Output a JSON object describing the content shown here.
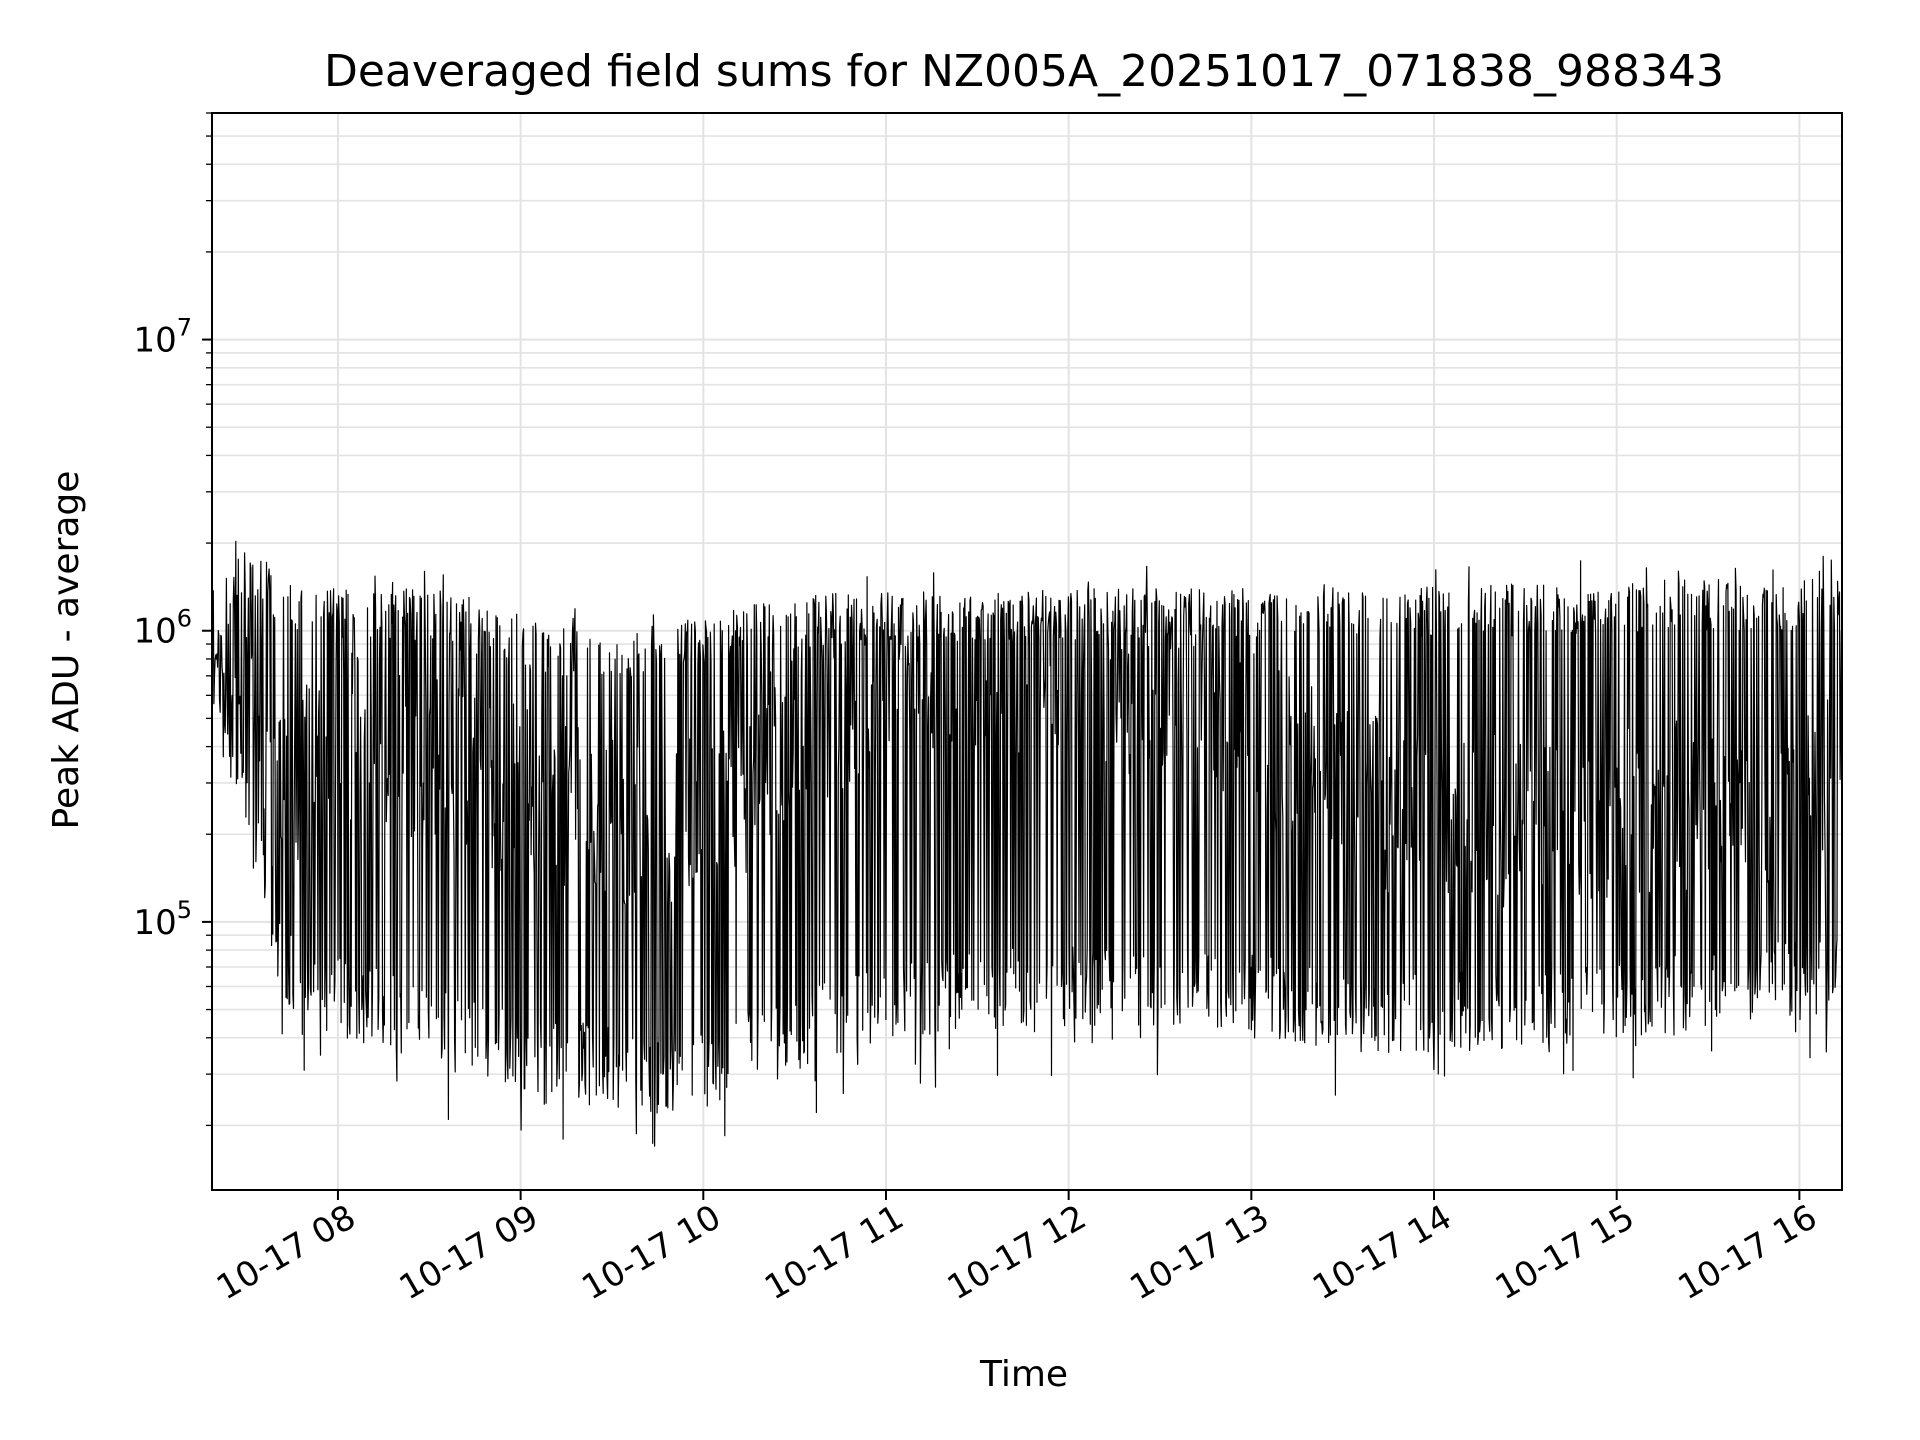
{
  "chart_data": {
    "type": "line",
    "title": "Deaveraged field sums for NZ005A_20251017_071838_988343",
    "xlabel": "Time",
    "ylabel": "Peak ADU - average",
    "yscale": "log",
    "xlim": [
      "2025-10-17T07:18:38",
      "2025-10-17T16:14:00"
    ],
    "ylim": [
      12000,
      60000000
    ],
    "grid": true,
    "line_color": "#000000",
    "x_ticks": [
      {
        "value": "2025-10-17T08:00:00",
        "label": "10-17 08"
      },
      {
        "value": "2025-10-17T09:00:00",
        "label": "10-17 09"
      },
      {
        "value": "2025-10-17T10:00:00",
        "label": "10-17 10"
      },
      {
        "value": "2025-10-17T11:00:00",
        "label": "10-17 11"
      },
      {
        "value": "2025-10-17T12:00:00",
        "label": "10-17 12"
      },
      {
        "value": "2025-10-17T13:00:00",
        "label": "10-17 13"
      },
      {
        "value": "2025-10-17T14:00:00",
        "label": "10-17 14"
      },
      {
        "value": "2025-10-17T15:00:00",
        "label": "10-17 15"
      },
      {
        "value": "2025-10-17T16:00:00",
        "label": "10-17 16"
      }
    ],
    "y_ticks": [
      {
        "value": 100000,
        "base": "10",
        "exp": "5"
      },
      {
        "value": 1000000,
        "base": "10",
        "exp": "6"
      },
      {
        "value": 10000000,
        "base": "10",
        "exp": "7"
      }
    ],
    "series": [
      {
        "x": [
          "2025-10-17T07:18:38",
          "2025-10-17T07:22:00",
          "2025-10-17T07:26:00",
          "2025-10-17T07:30:00",
          "2025-10-17T07:35:00",
          "2025-10-17T07:40:00",
          "2025-10-17T07:45:00",
          "2025-10-17T07:50:00",
          "2025-10-17T07:55:00",
          "2025-10-17T08:00:00",
          "2025-10-17T08:10:00",
          "2025-10-17T08:20:00",
          "2025-10-17T08:30:00",
          "2025-10-17T08:40:00",
          "2025-10-17T08:50:00",
          "2025-10-17T09:00:00",
          "2025-10-17T09:15:00",
          "2025-10-17T09:30:00",
          "2025-10-17T09:45:00",
          "2025-10-17T10:00:00",
          "2025-10-17T10:15:00",
          "2025-10-17T10:30:00",
          "2025-10-17T10:45:00",
          "2025-10-17T11:00:00",
          "2025-10-17T11:15:00",
          "2025-10-17T11:30:00",
          "2025-10-17T11:45:00",
          "2025-10-17T12:00:00",
          "2025-10-17T12:15:00",
          "2025-10-17T12:30:00",
          "2025-10-17T12:45:00",
          "2025-10-17T13:00:00",
          "2025-10-17T13:15:00",
          "2025-10-17T13:30:00",
          "2025-10-17T13:45:00",
          "2025-10-17T14:00:00",
          "2025-10-17T14:15:00",
          "2025-10-17T14:30:00",
          "2025-10-17T14:45:00",
          "2025-10-17T15:00:00",
          "2025-10-17T15:15:00",
          "2025-10-17T15:30:00",
          "2025-10-17T15:45:00",
          "2025-10-17T16:00:00",
          "2025-10-17T16:14:00"
        ],
        "upper": [
          1000000,
          900000,
          1800000,
          1900000,
          1800000,
          1600000,
          1500000,
          1400000,
          1400000,
          1400000,
          1400000,
          1400000,
          1400000,
          1300000,
          1200000,
          1100000,
          1050000,
          1000000,
          1050000,
          1150000,
          1250000,
          1300000,
          1350000,
          1350000,
          1350000,
          1400000,
          1400000,
          1400000,
          1400000,
          1400000,
          1400000,
          1400000,
          1450000,
          1450000,
          1450000,
          1450000,
          1450000,
          1450000,
          1450000,
          1450000,
          1500000,
          1500000,
          1500000,
          1500000,
          1500000
        ],
        "lower": [
          700000,
          500000,
          300000,
          200000,
          100000,
          60000,
          50000,
          45000,
          42000,
          40000,
          38000,
          35000,
          32000,
          30000,
          28000,
          25000,
          24000,
          23000,
          22000,
          23000,
          26000,
          30000,
          34000,
          38000,
          40000,
          42000,
          43000,
          44000,
          44000,
          44000,
          43000,
          42000,
          38000,
          36000,
          35000,
          35000,
          36000,
          37000,
          38000,
          39000,
          40000,
          42000,
          44000,
          46000,
          50000
        ],
        "typical": [
          900000,
          700000,
          900000,
          700000,
          450000,
          250000,
          300000,
          350000,
          400000,
          450000,
          420000,
          380000,
          350000,
          320000,
          300000,
          280000,
          250000,
          220000,
          200000,
          220000,
          300000,
          450000,
          550000,
          650000,
          700000,
          750000,
          700000,
          650000,
          600000,
          600000,
          550000,
          450000,
          350000,
          280000,
          250000,
          240000,
          230000,
          220000,
          230000,
          240000,
          250000,
          260000,
          270000,
          280000,
          300000
        ]
      }
    ]
  }
}
